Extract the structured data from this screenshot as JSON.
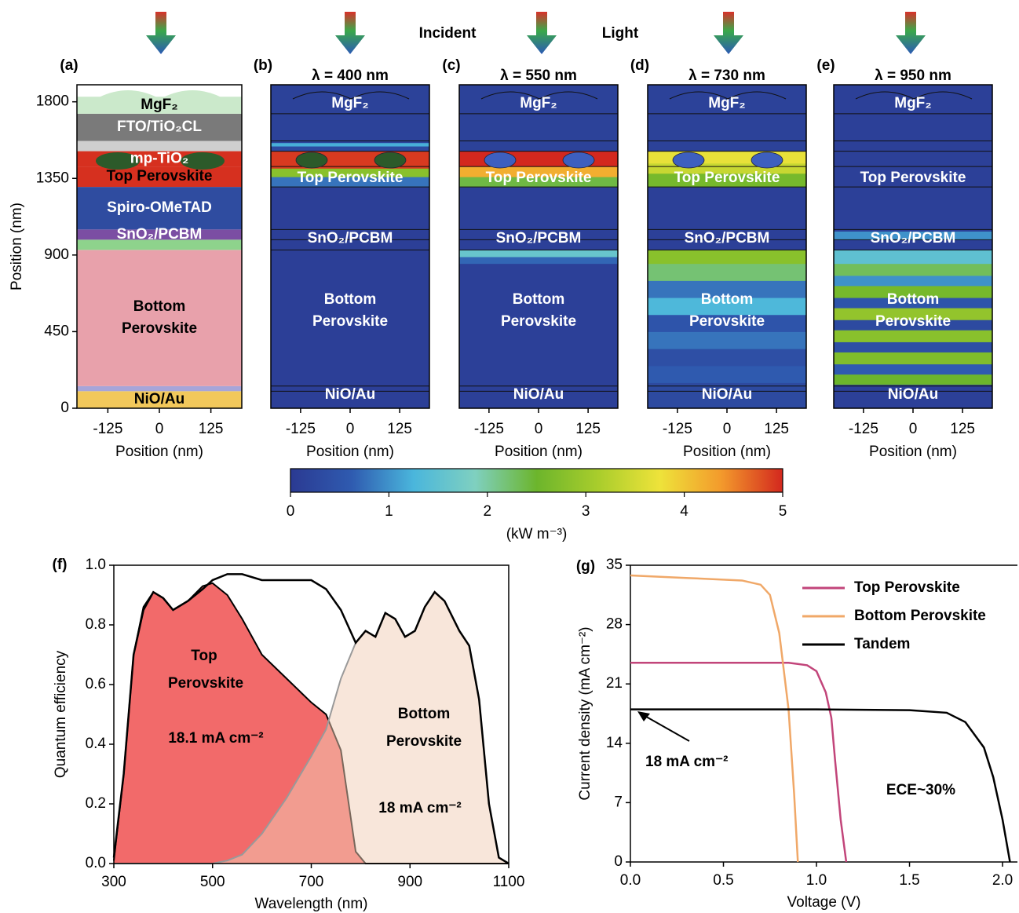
{
  "header": {
    "words": [
      "Incident",
      "Light"
    ]
  },
  "chart_data": [
    {
      "type": "layers",
      "label": "(a)",
      "xlabel": "Position (nm)",
      "ylabel": "Position (nm)",
      "xlim": [
        -200,
        200
      ],
      "xticks": [
        -125,
        0,
        125
      ],
      "ylim": [
        0,
        1900
      ],
      "yticks": [
        0,
        450,
        900,
        1350,
        1800
      ],
      "layers": [
        {
          "name": "NiO/Au",
          "bottom": 0,
          "top": 100,
          "color": "#f2c85b",
          "label_color": "#000000"
        },
        {
          "name": null,
          "bottom": 100,
          "top": 130,
          "color": "#a7a5d9"
        },
        {
          "name": [
            "Bottom",
            "Perovskite"
          ],
          "bottom": 130,
          "top": 930,
          "color": "#e8a1ab",
          "label_color": "#000000"
        },
        {
          "name": null,
          "bottom": 930,
          "top": 990,
          "color": "#8ed38c"
        },
        {
          "name": "SnO₂/PCBM",
          "bottom": 990,
          "top": 1050,
          "color": "#7b4ea3",
          "label_color": "#ffffff"
        },
        {
          "name": "Spiro-OMeTAD",
          "bottom": 1050,
          "top": 1300,
          "color": "#2f4ca0",
          "label_color": "#ffffff"
        },
        {
          "name": "Top Perovskite",
          "bottom": 1300,
          "top": 1420,
          "color": "#d6301f",
          "label_color": "#000000"
        },
        {
          "name": "mp-TiO₂",
          "bottom": 1420,
          "top": 1510,
          "color": "#d6301f",
          "label_color": "#ffffff"
        },
        {
          "name": null,
          "bottom": 1510,
          "top": 1570,
          "color": "#cfcfcf"
        },
        {
          "name": "FTO/TiO₂CL",
          "bottom": 1570,
          "top": 1730,
          "color": "#7a7a7a",
          "label_color": "#ffffff"
        },
        {
          "name": "MgF₂",
          "bottom": 1730,
          "top": 1830,
          "color": "#cbe9cb",
          "label_color": "#000000"
        }
      ]
    },
    {
      "type": "field",
      "label": "(b)",
      "title": "λ = 400 nm",
      "xlabel": "Position (nm)",
      "xlim": [
        -200,
        200
      ],
      "xticks": [
        -125,
        0,
        125
      ],
      "ylim": [
        0,
        1900
      ],
      "labels": [
        "MgF₂",
        "Top Perovskite",
        "SnO₂/PCBM",
        [
          "Bottom",
          "Perovskite"
        ],
        "NiO/Au"
      ],
      "bands": [
        {
          "bottom": 0,
          "top": 1300,
          "value": 0.1
        },
        {
          "bottom": 1300,
          "top": 1360,
          "value": 0.8
        },
        {
          "bottom": 1360,
          "top": 1410,
          "value": 2.8
        },
        {
          "bottom": 1410,
          "top": 1510,
          "value": 4.9
        },
        {
          "bottom": 1510,
          "top": 1540,
          "value": 0.3
        },
        {
          "bottom": 1540,
          "top": 1560,
          "value": 1.2
        },
        {
          "bottom": 1560,
          "top": 1900,
          "value": 0.15
        }
      ]
    },
    {
      "type": "field",
      "label": "(c)",
      "title": "λ = 550 nm",
      "xlabel": "Position (nm)",
      "xlim": [
        -200,
        200
      ],
      "xticks": [
        -125,
        0,
        125
      ],
      "ylim": [
        0,
        1900
      ],
      "labels": [
        "MgF₂",
        "Top Perovskite",
        "SnO₂/PCBM",
        [
          "Bottom",
          "Perovskite"
        ],
        "NiO/Au"
      ],
      "bands": [
        {
          "bottom": 0,
          "top": 850,
          "value": 0.12
        },
        {
          "bottom": 850,
          "top": 890,
          "value": 0.7
        },
        {
          "bottom": 890,
          "top": 930,
          "value": 1.6
        },
        {
          "bottom": 930,
          "top": 1300,
          "value": 0.12
        },
        {
          "bottom": 1300,
          "top": 1360,
          "value": 2.4
        },
        {
          "bottom": 1360,
          "top": 1420,
          "value": 4.2
        },
        {
          "bottom": 1420,
          "top": 1510,
          "value": 5
        },
        {
          "bottom": 1510,
          "top": 1900,
          "value": 0.15
        }
      ]
    },
    {
      "type": "field",
      "label": "(d)",
      "title": "λ = 730 nm",
      "xlabel": "Position (nm)",
      "xlim": [
        -200,
        200
      ],
      "xticks": [
        -125,
        0,
        125
      ],
      "ylim": [
        0,
        1900
      ],
      "labels": [
        "MgF₂",
        "Top Perovskite",
        "SnO₂/PCBM",
        [
          "Bottom",
          "Perovskite"
        ],
        "NiO/Au"
      ],
      "bands": [
        {
          "bottom": 0,
          "top": 150,
          "value": 0.3
        },
        {
          "bottom": 150,
          "top": 250,
          "value": 0.6
        },
        {
          "bottom": 250,
          "top": 350,
          "value": 0.4
        },
        {
          "bottom": 350,
          "top": 450,
          "value": 0.8
        },
        {
          "bottom": 450,
          "top": 550,
          "value": 0.5
        },
        {
          "bottom": 550,
          "top": 650,
          "value": 1.3
        },
        {
          "bottom": 650,
          "top": 750,
          "value": 0.8
        },
        {
          "bottom": 750,
          "top": 850,
          "value": 2.2
        },
        {
          "bottom": 850,
          "top": 930,
          "value": 2.8
        },
        {
          "bottom": 930,
          "top": 1300,
          "value": 0.12
        },
        {
          "bottom": 1300,
          "top": 1380,
          "value": 2.6
        },
        {
          "bottom": 1380,
          "top": 1440,
          "value": 3.4
        },
        {
          "bottom": 1440,
          "top": 1510,
          "value": 3.7
        },
        {
          "bottom": 1510,
          "top": 1900,
          "value": 0.15
        }
      ]
    },
    {
      "type": "field",
      "label": "(e)",
      "title": "λ = 950 nm",
      "xlabel": "Position (nm)",
      "xlim": [
        -200,
        200
      ],
      "xticks": [
        -125,
        0,
        125
      ],
      "ylim": [
        0,
        1900
      ],
      "labels": [
        "MgF₂",
        "Top Perovskite",
        "SnO₂/PCBM",
        [
          "Bottom",
          "Perovskite"
        ],
        "NiO/Au"
      ],
      "bands": [
        {
          "bottom": 0,
          "top": 140,
          "value": 0.12
        },
        {
          "bottom": 140,
          "top": 200,
          "value": 2.5
        },
        {
          "bottom": 200,
          "top": 260,
          "value": 0.6
        },
        {
          "bottom": 260,
          "top": 330,
          "value": 2.7
        },
        {
          "bottom": 330,
          "top": 390,
          "value": 0.4
        },
        {
          "bottom": 390,
          "top": 460,
          "value": 2.8
        },
        {
          "bottom": 460,
          "top": 520,
          "value": 0.3
        },
        {
          "bottom": 520,
          "top": 590,
          "value": 2.9
        },
        {
          "bottom": 590,
          "top": 650,
          "value": 0.5
        },
        {
          "bottom": 650,
          "top": 720,
          "value": 2.6
        },
        {
          "bottom": 720,
          "top": 780,
          "value": 1.0
        },
        {
          "bottom": 780,
          "top": 850,
          "value": 2.3
        },
        {
          "bottom": 850,
          "top": 930,
          "value": 1.5
        },
        {
          "bottom": 930,
          "top": 990,
          "value": 0.12
        },
        {
          "bottom": 990,
          "top": 1040,
          "value": 1.0
        },
        {
          "bottom": 1040,
          "top": 1900,
          "value": 0.12
        }
      ]
    },
    {
      "type": "colorbar",
      "xlim": [
        0,
        5
      ],
      "xticks": [
        0,
        1,
        2,
        3,
        4,
        5
      ],
      "label": "(kW m⁻³)",
      "colors": [
        "#2b3a92",
        "#2f5bb0",
        "#4ab6dc",
        "#7fd0c0",
        "#6cb52c",
        "#a9cd2c",
        "#eee33a",
        "#f39a2c",
        "#d3281e"
      ]
    },
    {
      "type": "area",
      "label": "(f)",
      "xlabel": "Wavelength (nm)",
      "ylabel": "Quantum efficiency",
      "xlim": [
        300,
        1100
      ],
      "xticks": [
        300,
        500,
        700,
        900,
        1100
      ],
      "ylim": [
        0,
        1
      ],
      "yticks": [
        {
          "value": 0,
          "label": "0.0"
        },
        0.2,
        0.4,
        0.6,
        0.8,
        {
          "value": 1,
          "label": "1.0"
        }
      ],
      "x": [
        300,
        320,
        340,
        360,
        380,
        400,
        420,
        450,
        480,
        500,
        530,
        560,
        600,
        650,
        700,
        730,
        760,
        790,
        810,
        830,
        850,
        870,
        890,
        910,
        930,
        950,
        970,
        1000,
        1020,
        1040,
        1060,
        1080,
        1100
      ],
      "series": [
        {
          "color": "#000000",
          "fill": "#f26a6a",
          "fill_opacity": 1,
          "values": [
            0.01,
            0.3,
            0.7,
            0.86,
            0.91,
            0.89,
            0.85,
            0.88,
            0.93,
            0.94,
            0.9,
            0.82,
            0.7,
            0.62,
            0.54,
            0.5,
            0.38,
            0.04,
            0,
            0,
            0,
            0,
            0,
            0,
            0,
            0,
            0,
            0,
            0,
            0,
            0,
            0,
            0
          ]
        },
        {
          "color": "#999999",
          "fill": "#f2cdb5",
          "fill_opacity": 0.5,
          "values": [
            0,
            0,
            0,
            0,
            0,
            0,
            0,
            0,
            0,
            0,
            0.01,
            0.03,
            0.1,
            0.22,
            0.36,
            0.45,
            0.62,
            0.74,
            0.78,
            0.76,
            0.84,
            0.82,
            0.76,
            0.78,
            0.86,
            0.91,
            0.88,
            0.78,
            0.73,
            0.55,
            0.2,
            0.02,
            0
          ]
        },
        {
          "color": "#000000",
          "values": [
            0.02,
            0.3,
            0.7,
            0.85,
            0.91,
            0.89,
            0.85,
            0.88,
            0.92,
            0.95,
            0.97,
            0.97,
            0.95,
            0.95,
            0.95,
            0.92,
            0.85,
            0.74,
            0.78,
            0.76,
            0.84,
            0.82,
            0.76,
            0.78,
            0.86,
            0.91,
            0.88,
            0.78,
            0.73,
            0.55,
            0.2,
            0.02,
            0
          ]
        }
      ],
      "annotations": [
        "Top",
        "Perovskite",
        "18.1 mA cm⁻²",
        "Bottom",
        "Perovskite",
        "18 mA cm⁻²"
      ]
    },
    {
      "type": "line",
      "label": "(g)",
      "xlabel": "Voltage (V)",
      "ylabel": "Current density (mA cm⁻²)",
      "xlim": [
        0,
        2.08
      ],
      "xticks": [
        {
          "value": 0,
          "label": "0.0"
        },
        0.5,
        {
          "value": 1,
          "label": "1.0"
        },
        1.5,
        {
          "value": 2,
          "label": "2.0"
        }
      ],
      "ylim": [
        0,
        35
      ],
      "yticks": [
        0,
        7,
        14,
        21,
        28,
        35
      ],
      "series": [
        {
          "name": "Top Perovskite",
          "color": "#c2457a",
          "x": [
            0,
            0.5,
            0.85,
            0.95,
            1.0,
            1.05,
            1.08,
            1.1,
            1.13,
            1.16
          ],
          "values": [
            23.5,
            23.5,
            23.5,
            23.2,
            22.5,
            20,
            17,
            12,
            5,
            0
          ]
        },
        {
          "name": "Bottom Perovskite",
          "color": "#f0a868",
          "x": [
            0,
            0.3,
            0.6,
            0.7,
            0.75,
            0.8,
            0.85,
            0.88,
            0.9
          ],
          "values": [
            33.8,
            33.5,
            33.2,
            32.7,
            31.5,
            27,
            18,
            8,
            0
          ]
        },
        {
          "name": "Tandem",
          "color": "#000000",
          "x": [
            0,
            1.0,
            1.5,
            1.7,
            1.8,
            1.9,
            1.95,
            2.0,
            2.04
          ],
          "values": [
            18,
            18,
            17.9,
            17.6,
            16.5,
            13.5,
            10,
            5,
            0
          ]
        }
      ],
      "annotations": [
        "18 mA cm⁻²",
        "ECE~30%"
      ]
    }
  ]
}
